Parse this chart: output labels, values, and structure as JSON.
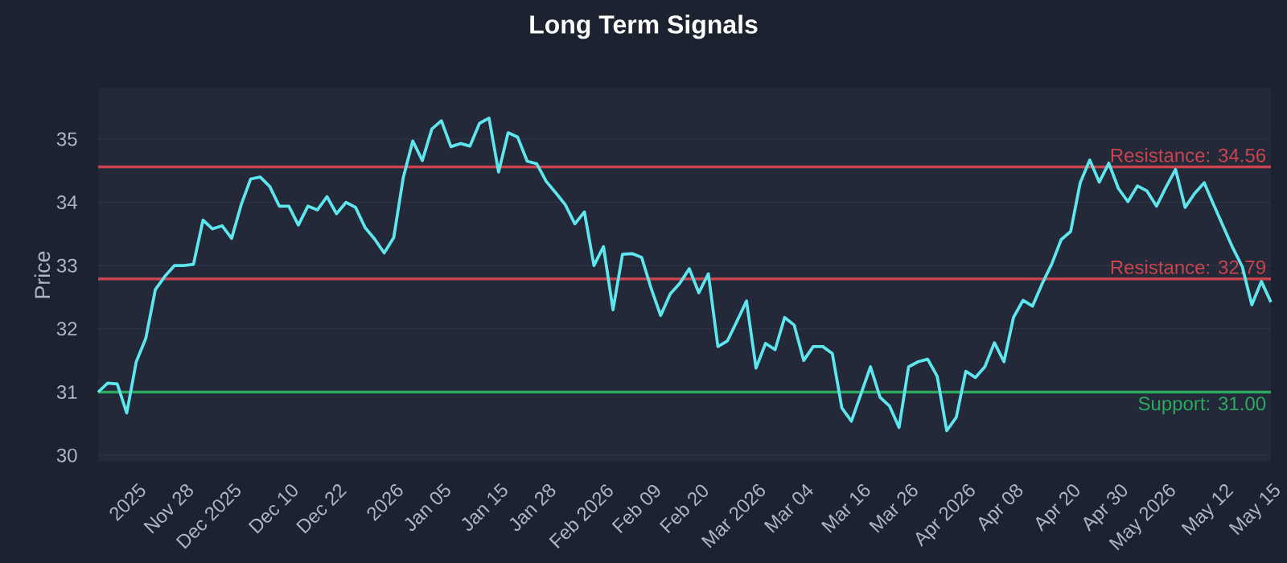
{
  "chart_data": {
    "type": "line",
    "title": "Long Term Signals",
    "ylabel": "Price",
    "categories": [
      null,
      null,
      null,
      null,
      "2025",
      null,
      null,
      null,
      null,
      "Nov 28",
      null,
      null,
      null,
      null,
      "Dec 2025",
      null,
      null,
      null,
      null,
      null,
      "Dec 10",
      null,
      null,
      null,
      null,
      "Dec 22",
      null,
      null,
      null,
      null,
      null,
      "2026",
      null,
      null,
      null,
      null,
      "Jan 05",
      null,
      null,
      null,
      null,
      null,
      "Jan 15",
      null,
      null,
      null,
      null,
      "Jan 28",
      null,
      null,
      null,
      null,
      null,
      "Feb 2026",
      null,
      null,
      null,
      null,
      "Feb 09",
      null,
      null,
      null,
      null,
      "Feb 20",
      null,
      null,
      null,
      null,
      null,
      "Mar 2026",
      null,
      null,
      null,
      null,
      "Mar 04",
      null,
      null,
      null,
      null,
      null,
      "Mar 16",
      null,
      null,
      null,
      null,
      "Mar 26",
      null,
      null,
      null,
      null,
      null,
      "Apr 2026",
      null,
      null,
      null,
      null,
      "Apr 08",
      null,
      null,
      null,
      null,
      null,
      "Apr 20",
      null,
      null,
      null,
      null,
      "Apr 30",
      null,
      null,
      null,
      null,
      "May 2026",
      null,
      null,
      null,
      null,
      null,
      "May 12",
      null,
      null,
      null,
      null,
      "May 15"
    ],
    "series": [
      {
        "color": "#5ee6ef",
        "values": [
          31.0,
          31.14,
          31.13,
          30.67,
          31.48,
          31.85,
          32.62,
          32.83,
          33.0,
          33.0,
          33.02,
          33.72,
          33.58,
          33.63,
          33.43,
          33.96,
          34.37,
          34.4,
          34.25,
          33.94,
          33.94,
          33.64,
          33.94,
          33.88,
          34.09,
          33.82,
          34.0,
          33.92,
          33.6,
          33.42,
          33.2,
          33.44,
          34.39,
          34.97,
          34.66,
          35.16,
          35.29,
          34.88,
          34.93,
          34.89,
          35.25,
          35.33,
          34.48,
          35.1,
          35.03,
          34.65,
          34.61,
          34.33,
          34.15,
          33.96,
          33.66,
          33.85,
          33.0,
          33.3,
          32.3,
          33.18,
          33.19,
          33.13,
          32.64,
          32.21,
          32.55,
          32.72,
          32.95,
          32.57,
          32.87,
          31.72,
          31.81,
          32.12,
          32.44,
          31.38,
          31.77,
          31.67,
          32.18,
          32.06,
          31.5,
          31.72,
          31.72,
          31.61,
          30.75,
          30.54,
          30.97,
          31.4,
          30.92,
          30.78,
          30.44,
          31.4,
          31.48,
          31.52,
          31.25,
          30.39,
          30.6,
          31.33,
          31.23,
          31.4,
          31.78,
          31.48,
          32.18,
          32.45,
          32.36,
          32.71,
          33.02,
          33.41,
          33.54,
          34.31,
          34.67,
          34.32,
          34.62,
          34.22,
          34.01,
          34.26,
          34.18,
          33.94,
          34.24,
          34.52,
          33.92,
          34.14,
          34.31,
          33.96,
          33.62,
          33.28,
          32.98,
          32.38,
          32.75,
          32.42
        ]
      }
    ],
    "ylim": [
      29.9,
      35.8
    ],
    "yticks": [
      30,
      31,
      32,
      33,
      34,
      35
    ],
    "grid": "y",
    "line_style": "solid",
    "ref_lines": [
      {
        "axis": "y",
        "value": 34.56,
        "label": "Resistance: 34.56",
        "color": "#c8444f"
      },
      {
        "axis": "y",
        "value": 32.79,
        "label": "Resistance: 32.79",
        "color": "#c8444f"
      },
      {
        "axis": "y",
        "value": 31.0,
        "label": "Support: 31.00",
        "color": "#2ea85e"
      }
    ]
  }
}
